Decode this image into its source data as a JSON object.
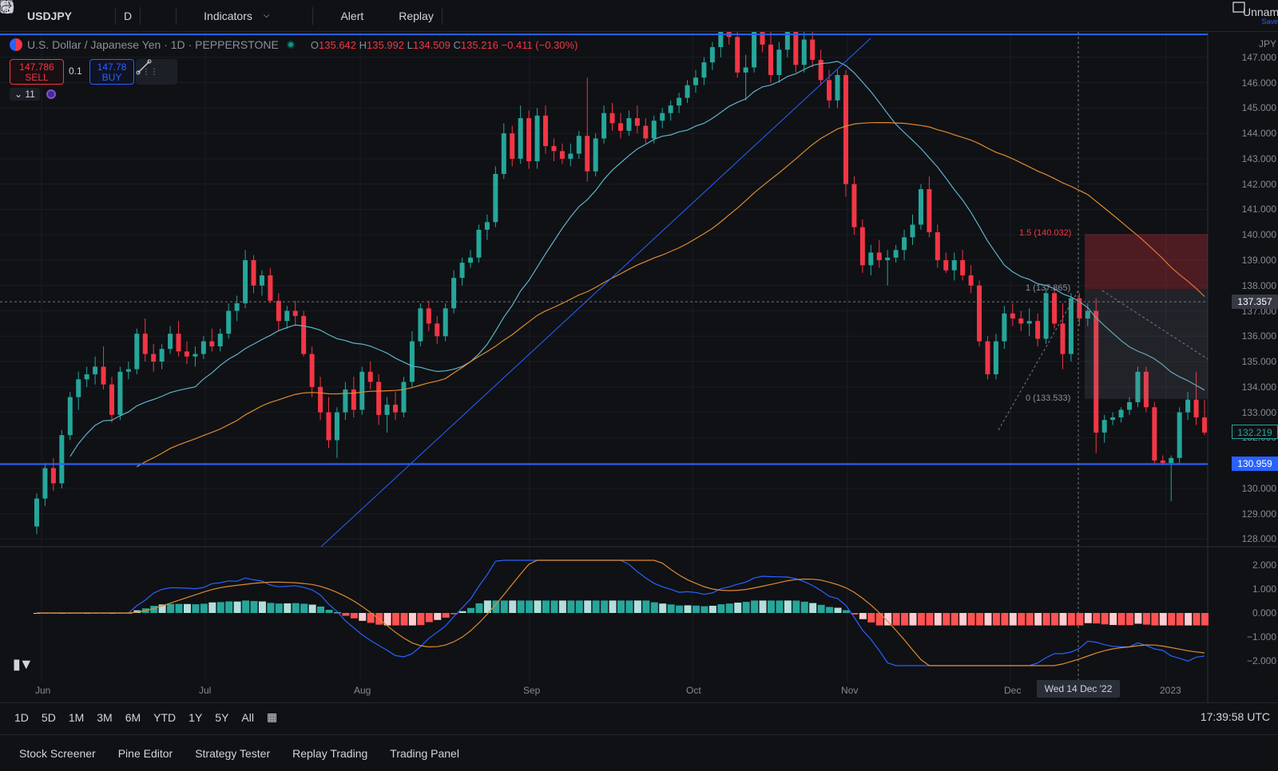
{
  "toolbar": {
    "symbol": "USDJPY",
    "interval": "D",
    "indicators_label": "Indicators",
    "alert_label": "Alert",
    "replay_label": "Replay",
    "layout_name": "Unnam",
    "save_label": "Save"
  },
  "legend": {
    "name": "U.S. Dollar / Japanese Yen · 1D · PEPPERSTONE",
    "o_key": "O",
    "o_val": "135.642",
    "h_key": "H",
    "h_val": "135.992",
    "l_key": "L",
    "l_val": "134.509",
    "c_key": "C",
    "c_val": "135.216",
    "change": "−0.411 (−0.30%)"
  },
  "trade": {
    "sell_price": "147.786",
    "sell_label": "SELL",
    "qty": "0.1",
    "buy_price": "147.78",
    "buy_label": "BUY",
    "indicator_count": "11"
  },
  "price_axis": {
    "currency": "JPY",
    "labels": [
      "147.000",
      "146.000",
      "145.000",
      "144.000",
      "143.000",
      "142.000",
      "141.000",
      "140.000",
      "139.000",
      "138.000",
      "137.000",
      "136.000",
      "135.000",
      "134.000",
      "133.000",
      "132.000",
      "131.000",
      "130.000",
      "129.000",
      "128.000"
    ],
    "crosshair_price": "137.357",
    "last_price": "132.219",
    "line_price": "130.959",
    "macd_labels": [
      "2.000",
      "1.000",
      "0.000",
      "−1.000",
      "−2.000"
    ]
  },
  "time_axis": {
    "labels": [
      "Jun",
      "Jul",
      "Aug",
      "Sep",
      "Oct",
      "Nov",
      "Dec",
      "2023"
    ],
    "cursor": "Wed 14 Dec '22"
  },
  "fib": {
    "l15": "1.5 (140.032)",
    "l1": "1 (137.865)",
    "l0": "0 (133.533)"
  },
  "ranges": [
    "1D",
    "5D",
    "1M",
    "3M",
    "6M",
    "YTD",
    "1Y",
    "5Y",
    "All"
  ],
  "clock": "17:39:58 UTC",
  "bottom_tabs": [
    "Stock Screener",
    "Pine Editor",
    "Strategy Tester",
    "Replay Trading",
    "Trading Panel"
  ],
  "colors": {
    "up": "#26a69a",
    "down": "#f23645",
    "ma_fast": "#5fb3c6",
    "ma_slow": "#e08a2c",
    "hline": "#2962ff"
  },
  "chart_data": {
    "type": "candlestick",
    "series_note": "",
    "ylim": [
      128,
      147.5
    ],
    "candles": [
      [
        128.5,
        129.8,
        128.2,
        129.6
      ],
      [
        129.6,
        131.0,
        129.3,
        130.8
      ],
      [
        130.8,
        131.2,
        129.9,
        130.2
      ],
      [
        130.2,
        132.3,
        130.0,
        132.1
      ],
      [
        132.1,
        133.8,
        131.9,
        133.6
      ],
      [
        133.6,
        134.6,
        133.1,
        134.3
      ],
      [
        134.3,
        134.8,
        134.0,
        134.5
      ],
      [
        134.5,
        135.2,
        134.1,
        134.8
      ],
      [
        134.8,
        135.6,
        133.9,
        134.1
      ],
      [
        134.1,
        134.4,
        132.6,
        132.9
      ],
      [
        132.9,
        134.8,
        132.7,
        134.6
      ],
      [
        134.6,
        135.0,
        134.3,
        134.7
      ],
      [
        134.7,
        136.3,
        134.5,
        136.1
      ],
      [
        136.1,
        136.7,
        135.0,
        135.3
      ],
      [
        135.3,
        135.7,
        134.6,
        135.0
      ],
      [
        135.0,
        135.7,
        134.7,
        135.5
      ],
      [
        135.5,
        136.4,
        135.3,
        136.1
      ],
      [
        136.1,
        136.6,
        135.2,
        135.4
      ],
      [
        135.4,
        135.8,
        134.9,
        135.2
      ],
      [
        135.2,
        135.6,
        134.8,
        135.3
      ],
      [
        135.3,
        136.0,
        135.1,
        135.8
      ],
      [
        135.8,
        136.3,
        135.4,
        135.6
      ],
      [
        135.6,
        136.3,
        135.4,
        136.1
      ],
      [
        136.1,
        137.3,
        135.9,
        137.0
      ],
      [
        137.0,
        137.6,
        136.6,
        137.3
      ],
      [
        137.3,
        139.4,
        137.1,
        139.0
      ],
      [
        139.0,
        139.2,
        137.7,
        138.0
      ],
      [
        138.0,
        138.6,
        137.6,
        138.4
      ],
      [
        138.4,
        138.7,
        137.3,
        137.4
      ],
      [
        137.4,
        137.7,
        136.2,
        136.6
      ],
      [
        136.6,
        137.2,
        136.3,
        137.0
      ],
      [
        137.0,
        137.4,
        136.4,
        136.8
      ],
      [
        136.8,
        137.0,
        135.2,
        135.3
      ],
      [
        135.3,
        135.6,
        133.6,
        134.0
      ],
      [
        134.0,
        134.4,
        132.7,
        133.0
      ],
      [
        133.0,
        133.6,
        131.6,
        131.9
      ],
      [
        131.9,
        133.2,
        131.2,
        133.0
      ],
      [
        133.0,
        134.2,
        132.7,
        133.9
      ],
      [
        133.9,
        134.4,
        132.8,
        133.1
      ],
      [
        133.1,
        134.8,
        132.9,
        134.6
      ],
      [
        134.6,
        135.0,
        133.9,
        134.2
      ],
      [
        134.2,
        134.5,
        132.5,
        132.9
      ],
      [
        132.9,
        133.6,
        132.2,
        133.3
      ],
      [
        133.3,
        133.8,
        132.7,
        133.0
      ],
      [
        133.0,
        134.4,
        132.8,
        134.2
      ],
      [
        134.2,
        136.2,
        134.0,
        135.8
      ],
      [
        135.8,
        137.3,
        135.6,
        137.1
      ],
      [
        137.1,
        137.4,
        136.2,
        136.5
      ],
      [
        136.5,
        136.8,
        135.7,
        136.0
      ],
      [
        136.0,
        137.3,
        135.8,
        137.1
      ],
      [
        137.1,
        138.6,
        136.9,
        138.3
      ],
      [
        138.3,
        139.1,
        138.0,
        138.9
      ],
      [
        138.9,
        139.4,
        138.7,
        139.1
      ],
      [
        139.1,
        140.4,
        138.9,
        140.2
      ],
      [
        140.2,
        140.8,
        139.8,
        140.5
      ],
      [
        140.5,
        142.7,
        140.3,
        142.4
      ],
      [
        142.4,
        144.4,
        142.2,
        144.0
      ],
      [
        144.0,
        144.3,
        142.7,
        143.0
      ],
      [
        143.0,
        145.1,
        142.8,
        144.6
      ],
      [
        144.6,
        144.9,
        142.6,
        142.9
      ],
      [
        142.9,
        145.0,
        142.6,
        144.7
      ],
      [
        144.7,
        145.1,
        143.2,
        143.5
      ],
      [
        143.5,
        143.8,
        142.9,
        143.3
      ],
      [
        143.3,
        143.6,
        142.8,
        143.0
      ],
      [
        143.0,
        143.6,
        142.7,
        143.2
      ],
      [
        143.2,
        144.1,
        143.0,
        143.9
      ],
      [
        143.9,
        146.2,
        142.1,
        142.5
      ],
      [
        142.5,
        144.0,
        142.3,
        143.8
      ],
      [
        143.8,
        145.1,
        143.6,
        144.8
      ],
      [
        144.8,
        145.2,
        144.1,
        144.4
      ],
      [
        144.4,
        144.8,
        143.8,
        144.1
      ],
      [
        144.1,
        144.9,
        143.9,
        144.6
      ],
      [
        144.6,
        145.1,
        144.0,
        144.3
      ],
      [
        144.3,
        144.6,
        143.6,
        143.8
      ],
      [
        143.8,
        144.7,
        143.6,
        144.5
      ],
      [
        144.5,
        145.0,
        144.2,
        144.8
      ],
      [
        144.8,
        145.3,
        144.5,
        145.1
      ],
      [
        145.1,
        145.6,
        144.8,
        145.4
      ],
      [
        145.4,
        146.1,
        145.2,
        145.9
      ],
      [
        145.9,
        146.5,
        145.6,
        146.2
      ],
      [
        146.2,
        147.0,
        145.9,
        146.8
      ],
      [
        146.8,
        147.6,
        146.5,
        147.4
      ],
      [
        147.4,
        148.2,
        147.0,
        148.0
      ],
      [
        148.0,
        148.8,
        147.5,
        147.8
      ],
      [
        147.8,
        148.4,
        146.2,
        146.4
      ],
      [
        146.4,
        147.1,
        145.3,
        146.6
      ],
      [
        146.6,
        148.5,
        146.4,
        148.2
      ],
      [
        148.2,
        148.9,
        147.2,
        147.5
      ],
      [
        147.5,
        148.0,
        146.0,
        146.3
      ],
      [
        146.3,
        147.6,
        146.0,
        147.3
      ],
      [
        147.3,
        148.3,
        147.0,
        148.0
      ],
      [
        148.0,
        148.6,
        146.4,
        146.7
      ],
      [
        146.7,
        148.0,
        146.4,
        147.7
      ],
      [
        147.7,
        148.1,
        146.6,
        146.9
      ],
      [
        146.9,
        147.3,
        145.9,
        146.1
      ],
      [
        146.1,
        146.5,
        145.0,
        145.3
      ],
      [
        145.3,
        146.5,
        145.0,
        146.3
      ],
      [
        146.3,
        146.5,
        141.5,
        142.0
      ],
      [
        142.0,
        142.3,
        140.0,
        140.3
      ],
      [
        140.3,
        140.6,
        138.5,
        138.8
      ],
      [
        138.8,
        139.6,
        138.4,
        139.3
      ],
      [
        139.3,
        139.8,
        138.7,
        139.0
      ],
      [
        139.0,
        139.4,
        138.0,
        139.1
      ],
      [
        139.1,
        139.6,
        138.9,
        139.4
      ],
      [
        139.4,
        140.2,
        139.0,
        139.9
      ],
      [
        139.9,
        140.8,
        139.6,
        140.4
      ],
      [
        140.4,
        142.0,
        140.2,
        141.8
      ],
      [
        141.8,
        142.3,
        139.9,
        140.1
      ],
      [
        140.1,
        140.4,
        138.7,
        139.0
      ],
      [
        139.0,
        139.3,
        138.5,
        138.6
      ],
      [
        138.6,
        139.3,
        138.2,
        139.0
      ],
      [
        139.0,
        139.4,
        138.2,
        138.4
      ],
      [
        138.4,
        138.8,
        137.7,
        138.0
      ],
      [
        138.0,
        138.2,
        135.6,
        135.8
      ],
      [
        135.8,
        136.0,
        134.3,
        134.5
      ],
      [
        134.5,
        136.1,
        134.3,
        135.8
      ],
      [
        135.8,
        137.2,
        135.5,
        136.9
      ],
      [
        136.9,
        137.3,
        136.4,
        136.7
      ],
      [
        136.7,
        137.0,
        136.2,
        136.5
      ],
      [
        136.5,
        137.1,
        136.0,
        136.6
      ],
      [
        136.6,
        136.9,
        135.6,
        135.9
      ],
      [
        135.9,
        137.9,
        135.7,
        137.7
      ],
      [
        137.7,
        137.9,
        136.3,
        136.5
      ],
      [
        136.5,
        137.3,
        134.7,
        135.3
      ],
      [
        135.3,
        137.7,
        135.0,
        137.5
      ],
      [
        137.5,
        137.7,
        136.4,
        136.7
      ],
      [
        136.7,
        137.3,
        136.4,
        137.0
      ],
      [
        137.0,
        137.5,
        131.4,
        132.2
      ],
      [
        132.2,
        132.9,
        131.8,
        132.7
      ],
      [
        132.7,
        133.0,
        132.5,
        132.8
      ],
      [
        132.8,
        133.2,
        132.6,
        133.1
      ],
      [
        133.1,
        133.6,
        132.9,
        133.4
      ],
      [
        133.4,
        134.8,
        133.2,
        134.6
      ],
      [
        134.6,
        134.8,
        133.0,
        133.2
      ],
      [
        133.2,
        133.4,
        131.0,
        131.1
      ],
      [
        131.1,
        131.3,
        130.9,
        131.0
      ],
      [
        131.0,
        131.3,
        129.5,
        131.2
      ],
      [
        131.2,
        133.2,
        131.0,
        133.0
      ],
      [
        133.0,
        133.8,
        132.7,
        133.5
      ],
      [
        133.5,
        134.6,
        132.5,
        132.8
      ],
      [
        132.8,
        133.5,
        132.1,
        132.2
      ]
    ]
  }
}
